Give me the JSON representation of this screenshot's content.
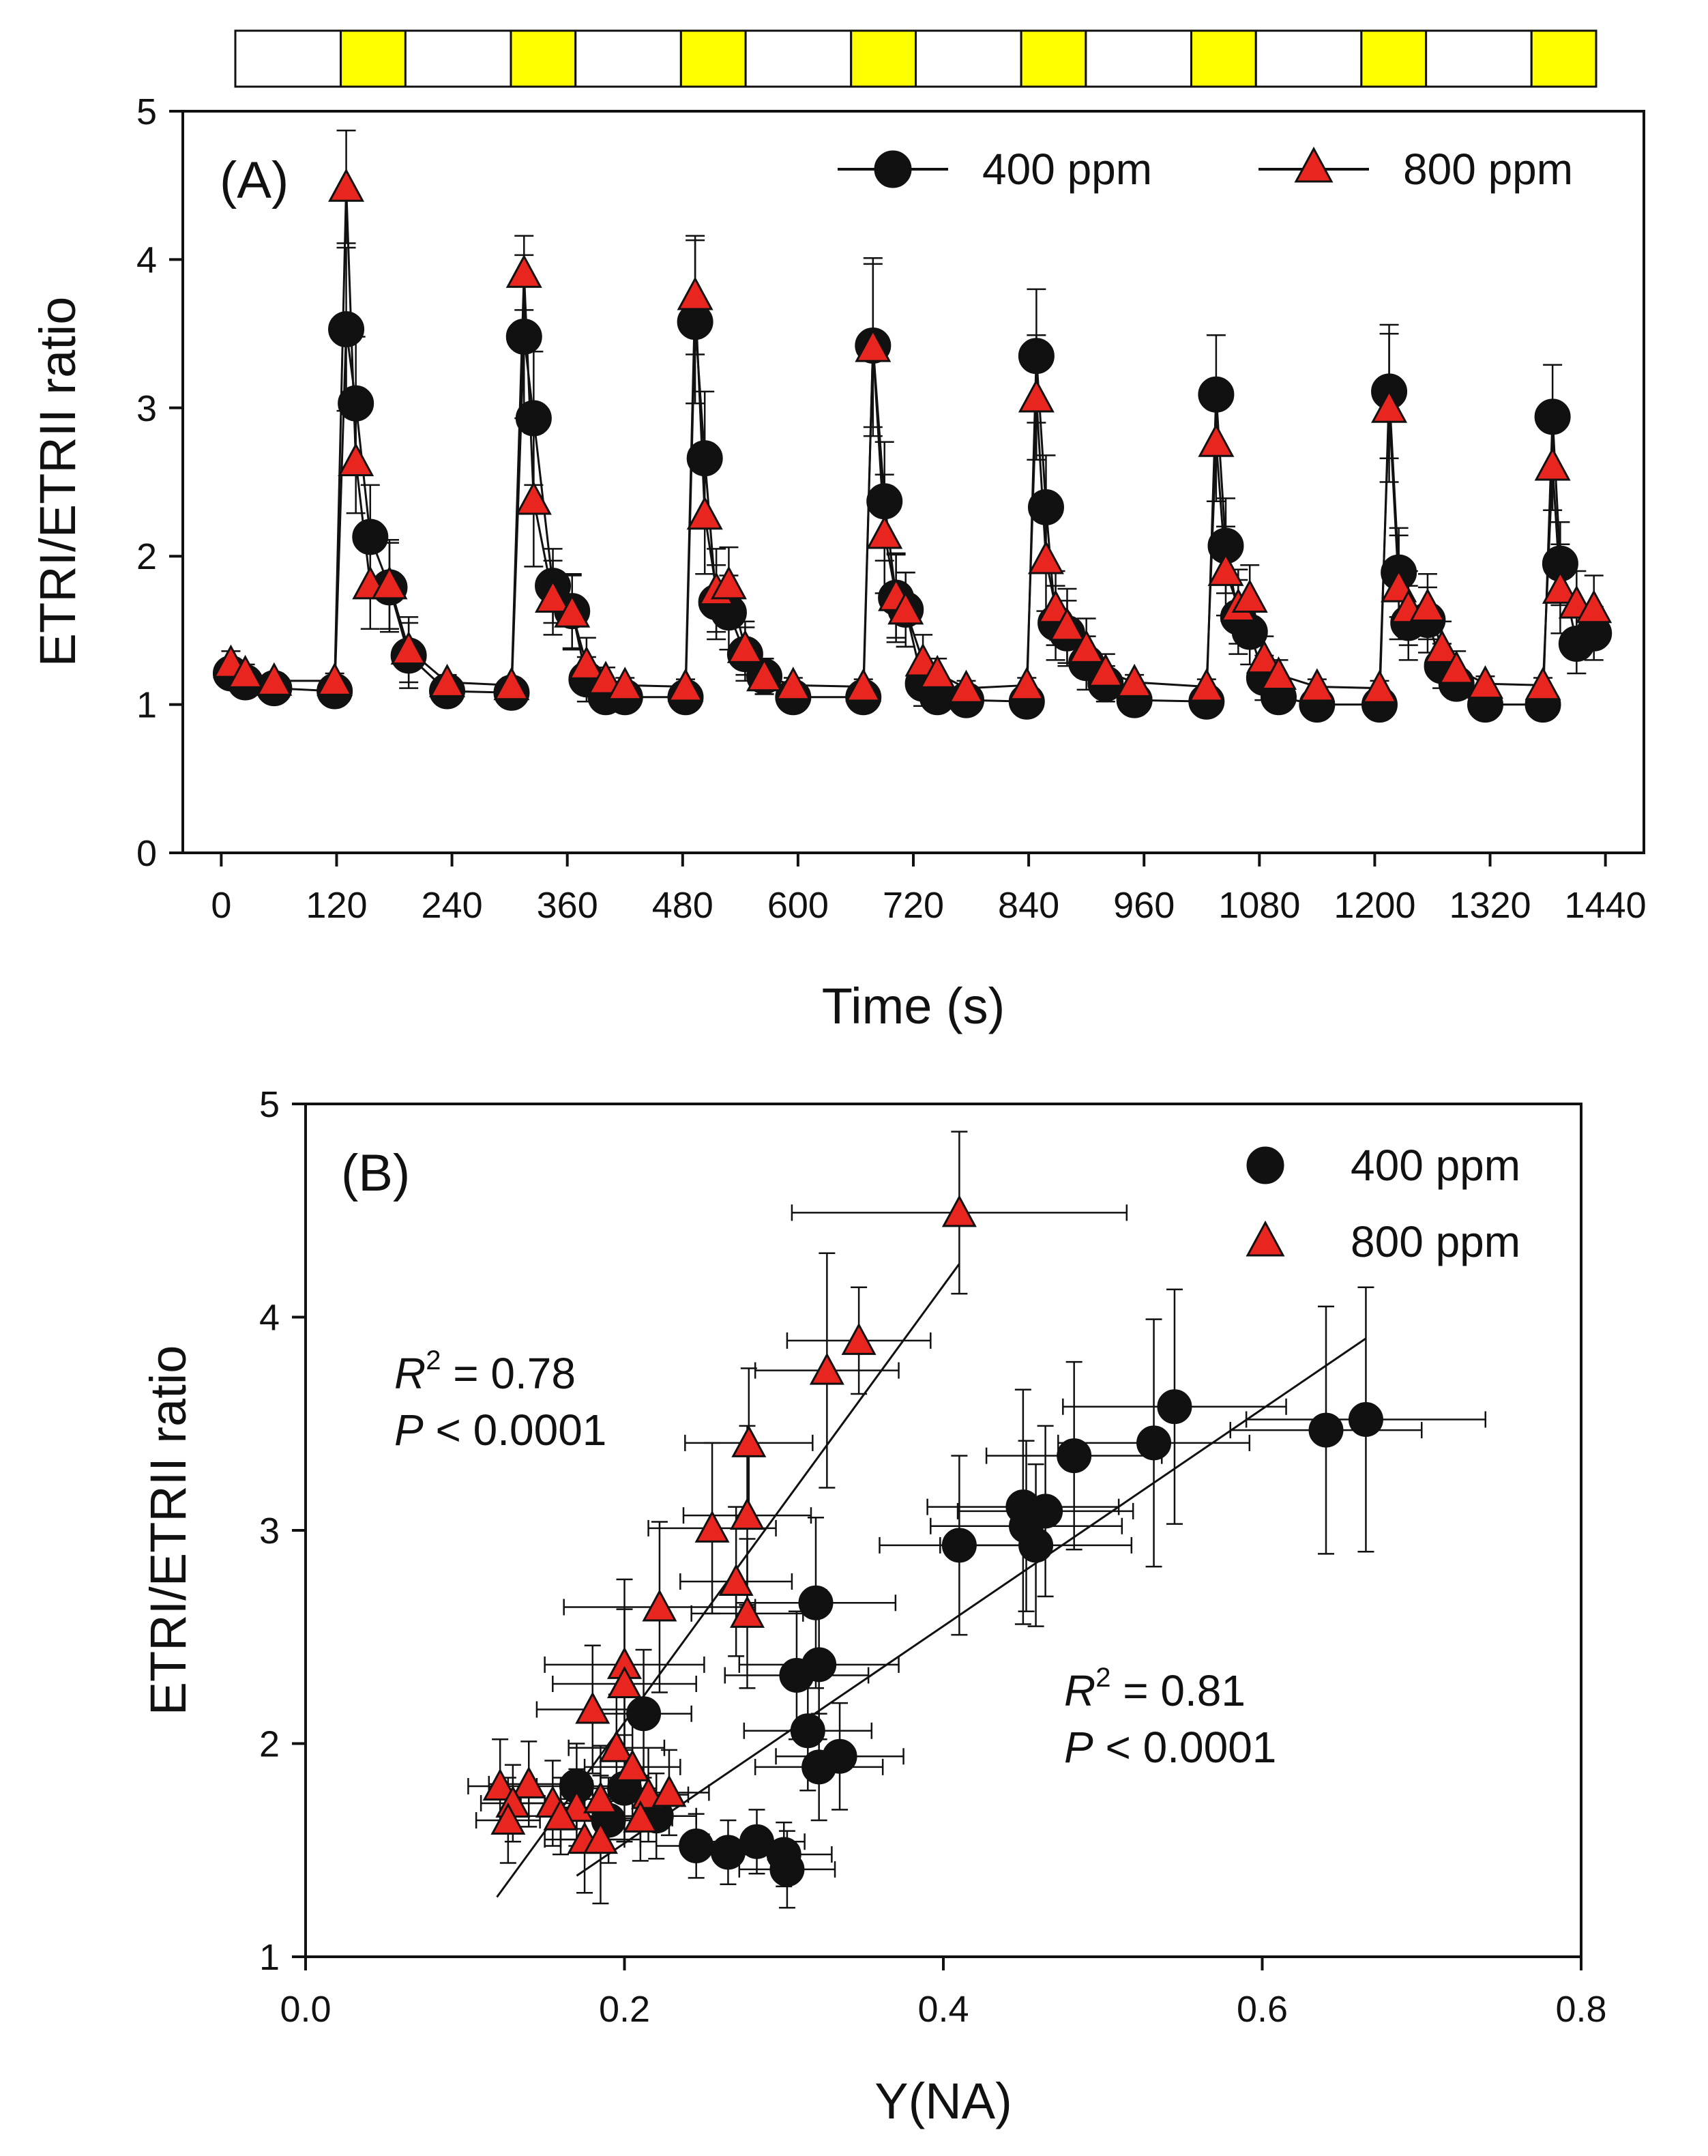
{
  "colors": {
    "series_400": "#111111",
    "series_800": "#e8251f",
    "light_bar": "#ffff00",
    "dark_bar": "#ffffff",
    "axis": "#111111"
  },
  "light_bar": {
    "segments": [
      "dark",
      "light",
      "dark",
      "light",
      "dark",
      "light",
      "dark",
      "light",
      "dark",
      "light",
      "dark",
      "light",
      "dark",
      "light",
      "dark",
      "light"
    ]
  },
  "chart_data": [
    {
      "type": "line",
      "panel_label": "(A)",
      "title": "",
      "xlabel": "Time (s)",
      "ylabel": "ETRI/ETRII ratio",
      "xlim": [
        -40,
        1480
      ],
      "ylim": [
        0,
        5
      ],
      "xticks": [
        0,
        120,
        240,
        360,
        480,
        600,
        720,
        840,
        960,
        1080,
        1200,
        1320,
        1440
      ],
      "yticks": [
        0,
        1,
        2,
        3,
        4,
        5
      ],
      "legend": {
        "placement": "top-right",
        "entries": [
          "400 ppm",
          "800 ppm"
        ]
      },
      "series": [
        {
          "name": "400 ppm",
          "marker": "circle",
          "x": [
            10,
            25,
            55,
            118,
            130,
            140,
            155,
            175,
            195,
            235,
            302,
            315,
            325,
            345,
            365,
            380,
            400,
            420,
            483,
            493,
            503,
            515,
            528,
            545,
            565,
            595,
            668,
            678,
            690,
            702,
            712,
            730,
            745,
            775,
            838,
            848,
            858,
            868,
            880,
            900,
            920,
            950,
            1025,
            1035,
            1045,
            1058,
            1070,
            1085,
            1100,
            1140,
            1205,
            1215,
            1225,
            1235,
            1255,
            1270,
            1285,
            1315,
            1375,
            1385,
            1393,
            1410,
            1428
          ],
          "y": [
            1.21,
            1.15,
            1.11,
            1.09,
            3.53,
            3.03,
            2.13,
            1.79,
            1.33,
            1.09,
            1.08,
            3.48,
            2.93,
            1.8,
            1.63,
            1.17,
            1.05,
            1.05,
            1.05,
            3.58,
            2.66,
            1.69,
            1.62,
            1.34,
            1.19,
            1.05,
            1.05,
            3.42,
            2.37,
            1.72,
            1.64,
            1.14,
            1.05,
            1.03,
            1.02,
            3.35,
            2.33,
            1.55,
            1.48,
            1.28,
            1.14,
            1.03,
            1.02,
            3.09,
            2.07,
            1.59,
            1.49,
            1.18,
            1.05,
            1.0,
            1.0,
            3.11,
            1.89,
            1.55,
            1.57,
            1.26,
            1.14,
            1.0,
            1.0,
            2.94,
            1.95,
            1.41,
            1.48
          ],
          "err": [
            0.08,
            0.06,
            0.05,
            0.05,
            0.55,
            0.45,
            0.35,
            0.3,
            0.22,
            0.05,
            0.05,
            0.55,
            0.45,
            0.25,
            0.25,
            0.15,
            0.05,
            0.05,
            0.05,
            0.55,
            0.45,
            0.25,
            0.25,
            0.18,
            0.12,
            0.05,
            0.05,
            0.55,
            0.4,
            0.3,
            0.25,
            0.15,
            0.05,
            0.05,
            0.05,
            0.45,
            0.35,
            0.25,
            0.22,
            0.18,
            0.12,
            0.05,
            0.05,
            0.4,
            0.32,
            0.25,
            0.22,
            0.15,
            0.08,
            0.05,
            0.05,
            0.45,
            0.3,
            0.25,
            0.22,
            0.15,
            0.1,
            0.05,
            0.05,
            0.35,
            0.28,
            0.2,
            0.18
          ]
        },
        {
          "name": "800 ppm",
          "marker": "triangle",
          "x": [
            10,
            25,
            55,
            118,
            130,
            140,
            155,
            175,
            195,
            235,
            302,
            315,
            325,
            345,
            365,
            380,
            400,
            420,
            483,
            493,
            503,
            515,
            528,
            545,
            565,
            595,
            668,
            678,
            690,
            702,
            712,
            730,
            745,
            775,
            838,
            848,
            858,
            868,
            880,
            900,
            920,
            950,
            1025,
            1035,
            1045,
            1058,
            1070,
            1085,
            1100,
            1140,
            1205,
            1215,
            1225,
            1235,
            1255,
            1270,
            1285,
            1315,
            1375,
            1385,
            1393,
            1410,
            1428
          ],
          "y": [
            1.28,
            1.21,
            1.16,
            1.16,
            4.49,
            2.64,
            1.81,
            1.81,
            1.37,
            1.15,
            1.13,
            3.91,
            2.38,
            1.72,
            1.62,
            1.27,
            1.17,
            1.13,
            1.12,
            3.76,
            2.28,
            1.77,
            1.81,
            1.38,
            1.19,
            1.13,
            1.12,
            3.41,
            2.15,
            1.73,
            1.64,
            1.29,
            1.21,
            1.11,
            1.13,
            3.07,
            1.98,
            1.65,
            1.53,
            1.38,
            1.22,
            1.15,
            1.12,
            2.77,
            1.9,
            1.66,
            1.72,
            1.31,
            1.2,
            1.12,
            1.11,
            3.0,
            1.79,
            1.65,
            1.66,
            1.38,
            1.24,
            1.14,
            1.13,
            2.61,
            1.78,
            1.68,
            1.65
          ],
          "err": [
            0.08,
            0.06,
            0.05,
            0.05,
            0.38,
            0.35,
            0.3,
            0.3,
            0.22,
            0.05,
            0.05,
            0.25,
            0.45,
            0.25,
            0.25,
            0.18,
            0.08,
            0.05,
            0.05,
            0.4,
            0.4,
            0.28,
            0.25,
            0.18,
            0.12,
            0.05,
            0.05,
            0.6,
            0.4,
            0.28,
            0.25,
            0.18,
            0.1,
            0.05,
            0.05,
            0.42,
            0.35,
            0.25,
            0.25,
            0.2,
            0.12,
            0.05,
            0.05,
            0.4,
            0.3,
            0.25,
            0.22,
            0.15,
            0.1,
            0.05,
            0.05,
            0.5,
            0.35,
            0.25,
            0.22,
            0.18,
            0.12,
            0.05,
            0.05,
            0.3,
            0.3,
            0.22,
            0.22
          ]
        }
      ]
    },
    {
      "type": "scatter",
      "panel_label": "(B)",
      "title": "",
      "xlabel": "Y(NA)",
      "ylabel": "ETRI/ETRII ratio",
      "xlim": [
        0.0,
        0.8
      ],
      "ylim": [
        1,
        5
      ],
      "xticks": [
        "0.0",
        "0.2",
        "0.4",
        "0.6",
        "0.8"
      ],
      "yticks": [
        1,
        2,
        3,
        4,
        5
      ],
      "legend": {
        "placement": "top-right",
        "entries": [
          "400 ppm",
          "800 ppm"
        ]
      },
      "annotations": [
        {
          "series": "800 ppm",
          "r2_symbol": "R",
          "r2_sup": "2",
          "r2_value": " = 0.78",
          "p_symbol": "P",
          "p_value": " < 0.0001",
          "at": [
            0.06,
            3.75
          ]
        },
        {
          "series": "400 ppm",
          "r2_symbol": "R",
          "r2_sup": "2",
          "r2_value": " = 0.81",
          "p_symbol": "P",
          "p_value": " < 0.0001",
          "at": [
            0.47,
            2.25
          ]
        }
      ],
      "series": [
        {
          "name": "400 ppm",
          "marker": "circle",
          "fit": {
            "x": [
              0.17,
              0.665
            ],
            "y": [
              1.38,
              3.9
            ]
          },
          "points": [
            [
              0.665,
              3.52,
              0.075,
              0.62
            ],
            [
              0.64,
              3.47,
              0.06,
              0.58
            ],
            [
              0.545,
              3.58,
              0.07,
              0.55
            ],
            [
              0.532,
              3.41,
              0.06,
              0.58
            ],
            [
              0.482,
              3.35,
              0.055,
              0.44
            ],
            [
              0.464,
              3.09,
              0.055,
              0.4
            ],
            [
              0.45,
              3.11,
              0.06,
              0.55
            ],
            [
              0.452,
              3.02,
              0.06,
              0.4
            ],
            [
              0.458,
              2.93,
              0.06,
              0.38
            ],
            [
              0.41,
              2.93,
              0.05,
              0.42
            ],
            [
              0.32,
              2.66,
              0.05,
              0.4
            ],
            [
              0.322,
              2.37,
              0.05,
              0.35
            ],
            [
              0.308,
              2.32,
              0.045,
              0.3
            ],
            [
              0.315,
              2.06,
              0.04,
              0.28
            ],
            [
              0.335,
              1.94,
              0.04,
              0.25
            ],
            [
              0.322,
              1.89,
              0.04,
              0.25
            ],
            [
              0.212,
              2.14,
              0.03,
              0.3
            ],
            [
              0.17,
              1.8,
              0.025,
              0.2
            ],
            [
              0.2,
              1.79,
              0.02,
              0.25
            ],
            [
              0.19,
              1.64,
              0.025,
              0.2
            ],
            [
              0.22,
              1.66,
              0.025,
              0.2
            ],
            [
              0.245,
              1.52,
              0.025,
              0.15
            ],
            [
              0.265,
              1.49,
              0.025,
              0.15
            ],
            [
              0.283,
              1.54,
              0.03,
              0.15
            ],
            [
              0.3,
              1.48,
              0.03,
              0.15
            ],
            [
              0.302,
              1.41,
              0.03,
              0.18
            ]
          ]
        },
        {
          "name": "800 ppm",
          "marker": "triangle",
          "fit": {
            "x": [
              0.12,
              0.41
            ],
            "y": [
              1.28,
              4.25
            ]
          },
          "points": [
            [
              0.41,
              4.49,
              0.105,
              0.38
            ],
            [
              0.347,
              3.89,
              0.045,
              0.25
            ],
            [
              0.327,
              3.75,
              0.045,
              0.55
            ],
            [
              0.278,
              3.41,
              0.04,
              0.35
            ],
            [
              0.277,
              3.07,
              0.04,
              0.42
            ],
            [
              0.255,
              3.01,
              0.04,
              0.4
            ],
            [
              0.27,
              2.76,
              0.035,
              0.35
            ],
            [
              0.277,
              2.61,
              0.035,
              0.35
            ],
            [
              0.222,
              2.64,
              0.06,
              0.4
            ],
            [
              0.2,
              2.37,
              0.05,
              0.4
            ],
            [
              0.2,
              2.28,
              0.045,
              0.35
            ],
            [
              0.18,
              2.16,
              0.035,
              0.3
            ],
            [
              0.195,
              1.98,
              0.03,
              0.25
            ],
            [
              0.205,
              1.89,
              0.03,
              0.25
            ],
            [
              0.122,
              1.8,
              0.02,
              0.22
            ],
            [
              0.14,
              1.81,
              0.025,
              0.2
            ],
            [
              0.13,
              1.72,
              0.02,
              0.18
            ],
            [
              0.155,
              1.72,
              0.02,
              0.2
            ],
            [
              0.17,
              1.7,
              0.02,
              0.18
            ],
            [
              0.185,
              1.74,
              0.025,
              0.25
            ],
            [
              0.215,
              1.76,
              0.025,
              0.22
            ],
            [
              0.228,
              1.77,
              0.025,
              0.2
            ],
            [
              0.127,
              1.64,
              0.02,
              0.2
            ],
            [
              0.16,
              1.66,
              0.02,
              0.18
            ],
            [
              0.175,
              1.55,
              0.025,
              0.25
            ],
            [
              0.185,
              1.55,
              0.025,
              0.3
            ],
            [
              0.21,
              1.65,
              0.02,
              0.2
            ]
          ]
        }
      ]
    }
  ]
}
